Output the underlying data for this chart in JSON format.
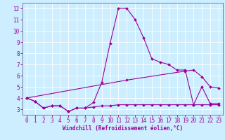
{
  "xlabel": "Windchill (Refroidissement éolien,°C)",
  "bg_color": "#cceeff",
  "grid_color": "#aaddcc",
  "line_color": "#990099",
  "spine_color": "#666699",
  "xlim": [
    -0.5,
    23.5
  ],
  "ylim": [
    2.5,
    12.5
  ],
  "yticks": [
    3,
    4,
    5,
    6,
    7,
    8,
    9,
    10,
    11,
    12
  ],
  "xticks": [
    0,
    1,
    2,
    3,
    4,
    5,
    6,
    7,
    8,
    9,
    10,
    11,
    12,
    13,
    14,
    15,
    16,
    17,
    18,
    19,
    20,
    21,
    22,
    23
  ],
  "main_line_x": [
    0,
    1,
    2,
    3,
    4,
    5,
    6,
    7,
    8,
    9,
    10,
    11,
    12,
    13,
    14,
    15,
    16,
    17,
    18,
    19,
    20,
    21,
    22,
    23
  ],
  "main_line_y": [
    4.0,
    3.7,
    3.1,
    3.3,
    3.3,
    2.8,
    3.1,
    3.1,
    3.6,
    5.4,
    8.9,
    12.0,
    12.0,
    11.0,
    9.4,
    7.5,
    7.2,
    7.0,
    6.5,
    6.5,
    3.4,
    5.0,
    3.5,
    3.5
  ],
  "lower_line_x": [
    0,
    1,
    2,
    3,
    4,
    5,
    6,
    7,
    8,
    9,
    10,
    11,
    12,
    13,
    14,
    15,
    16,
    17,
    18,
    19,
    20,
    21,
    22,
    23
  ],
  "lower_line_y": [
    4.0,
    3.7,
    3.1,
    3.3,
    3.3,
    2.8,
    3.1,
    3.1,
    3.2,
    3.3,
    3.3,
    3.4,
    3.4,
    3.4,
    3.4,
    3.4,
    3.4,
    3.4,
    3.4,
    3.4,
    3.4,
    3.4,
    3.4,
    3.4
  ],
  "upper_line_x": [
    0,
    12,
    19,
    20,
    21,
    22,
    23
  ],
  "upper_line_y": [
    4.0,
    5.6,
    6.4,
    6.5,
    5.9,
    5.0,
    4.9
  ],
  "marker": "D",
  "markersize": 2.0,
  "linewidth": 0.8,
  "tick_fontsize": 5.5,
  "xlabel_fontsize": 5.5
}
